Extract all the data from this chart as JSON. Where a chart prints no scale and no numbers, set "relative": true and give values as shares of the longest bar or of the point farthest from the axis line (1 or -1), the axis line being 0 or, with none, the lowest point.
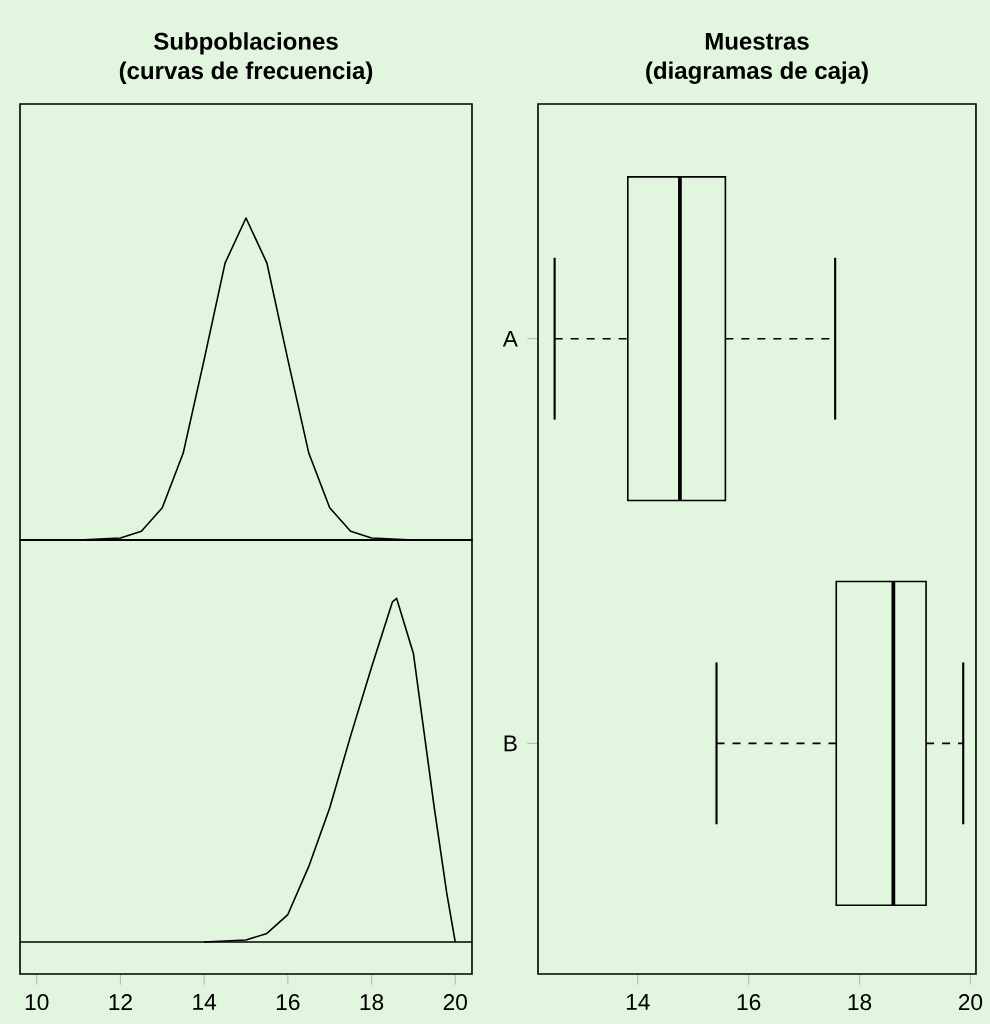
{
  "chart_data": [
    {
      "type": "line",
      "title": "Subpoblaciones",
      "subtitle": "(curvas de frecuencia)",
      "relative": true,
      "xlim": [
        9.6,
        20.4
      ],
      "tick_labels": false,
      "series": [
        {
          "color": "#000000",
          "x": [
            11,
            12,
            12.5,
            13,
            13.5,
            14,
            14.5,
            15,
            15.5,
            16,
            16.5,
            17,
            17.5,
            18,
            19
          ],
          "values": [
            0,
            0.006,
            0.027,
            0.1,
            0.27,
            0.56,
            0.86,
            1,
            0.86,
            0.56,
            0.27,
            0.1,
            0.027,
            0.006,
            0
          ]
        }
      ]
    },
    {
      "type": "line",
      "relative": true,
      "xlim": [
        9.6,
        20.4
      ],
      "xticks": [
        10,
        12,
        14,
        16,
        18,
        20
      ],
      "tick_labels": "x",
      "series": [
        {
          "color": "#000000",
          "x": [
            14,
            15,
            15.5,
            16,
            16.5,
            17,
            17.5,
            18,
            18.5,
            18.6,
            19,
            19.5,
            19.8,
            20
          ],
          "values": [
            0,
            0.006,
            0.025,
            0.08,
            0.22,
            0.39,
            0.6,
            0.8,
            0.99,
            1,
            0.84,
            0.39,
            0.14,
            0
          ]
        }
      ]
    },
    {
      "type": "box",
      "orientation": "horizontal",
      "title": "Muestras",
      "subtitle": "(diagramas de caja)",
      "categories": [
        "A",
        "B"
      ],
      "xlim": [
        12.2,
        20.1
      ],
      "xticks": [
        14,
        16,
        18,
        20
      ],
      "boxes": [
        {
          "low": 12.5,
          "q1": 13.82,
          "median": 14.76,
          "q3": 15.58,
          "high": 17.56
        },
        {
          "low": 15.42,
          "q1": 17.58,
          "median": 18.61,
          "q3": 19.2,
          "high": 19.87
        }
      ]
    }
  ]
}
